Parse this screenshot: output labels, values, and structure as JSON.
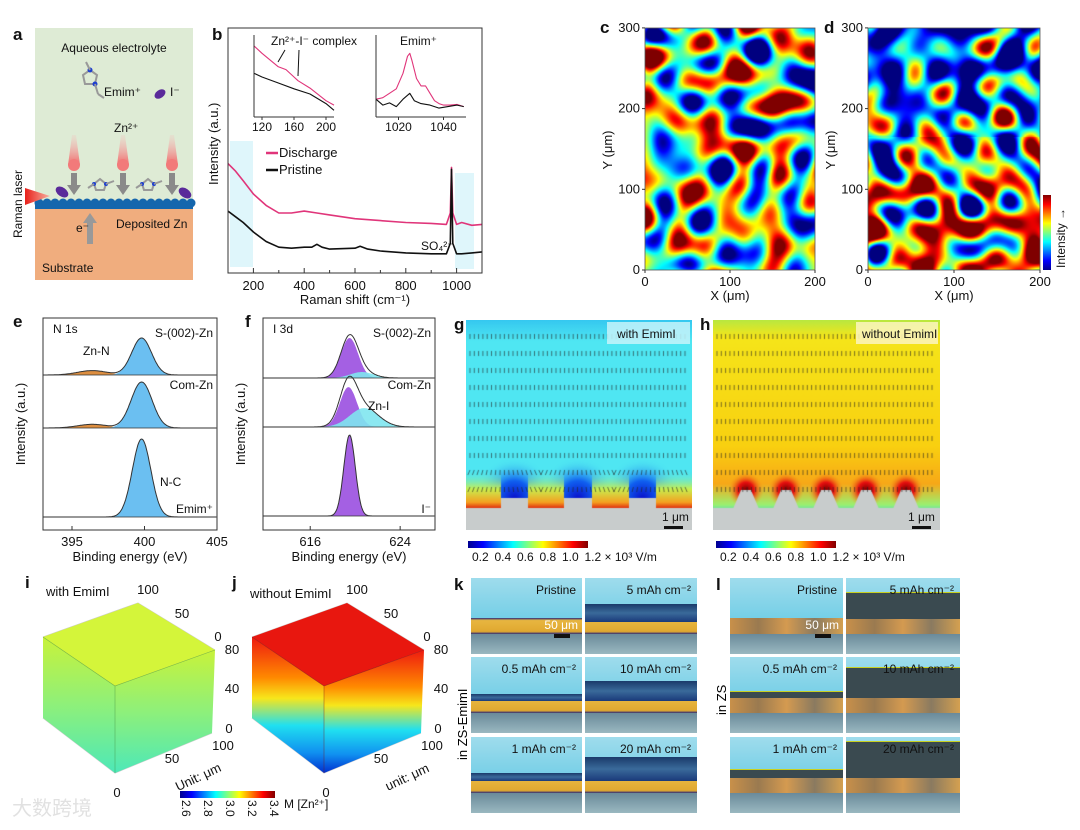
{
  "panel_labels": [
    "a",
    "b",
    "c",
    "d",
    "e",
    "f",
    "g",
    "h",
    "i",
    "j",
    "k",
    "l"
  ],
  "a": {
    "title": "Aqueous electrolyte",
    "emim": "Emim⁺",
    "iodide": "I⁻",
    "zinc_ion": "Zn²⁺",
    "laser": "Raman laser",
    "electron": "e⁻",
    "deposited": "Deposited Zn",
    "substrate": "Substrate"
  },
  "c": {
    "xlabel": "X (μm)",
    "ylabel": "Y (μm)",
    "xticks": [
      "0",
      "100",
      "200"
    ],
    "yticks": [
      "0",
      "100",
      "200",
      "300"
    ]
  },
  "d": {
    "xlabel": "X (μm)",
    "ylabel": "Y (μm)",
    "xticks": [
      "0",
      "100",
      "200"
    ],
    "yticks": [
      "0",
      "100",
      "200",
      "300"
    ],
    "colorbar_label": "Intensity →"
  },
  "g": {
    "tag": "with EmimI",
    "scale": "1 μm",
    "cbar_ticks": [
      "0.2",
      "0.4",
      "0.6",
      "0.8",
      "1.0",
      "1.2 × 10³ V/m"
    ]
  },
  "h": {
    "tag": "without EmimI",
    "scale": "1 μm",
    "cbar_ticks": [
      "0.2",
      "0.4",
      "0.6",
      "0.8",
      "1.0",
      "1.2 × 10³ V/m"
    ]
  },
  "i": {
    "title": "with EmimI",
    "unit": "Unit: μm",
    "ticks_top": [
      "100",
      "50",
      "0"
    ],
    "ticks_z": [
      "80",
      "40",
      "0"
    ],
    "ticks_front": [
      "100",
      "50",
      "0"
    ],
    "mean_conc": 3.05
  },
  "j": {
    "title": "without EmimI",
    "unit": "unit: μm",
    "ticks_top": [
      "100",
      "50",
      "0"
    ],
    "ticks_z": [
      "80",
      "40",
      "0"
    ],
    "ticks_front": [
      "100",
      "50",
      "0"
    ]
  },
  "ij_colorbar": {
    "ticks": [
      "2.6",
      "2.8",
      "3.0",
      "3.2",
      "3.4"
    ],
    "label": "M [Zn²⁺]"
  },
  "k": {
    "side_label": "in ZS-EmimI",
    "scale": "50 μm",
    "cells": [
      "Pristine",
      "5 mAh cm⁻²",
      "0.5 mAh cm⁻²",
      "10 mAh cm⁻²",
      "1 mAh cm⁻²",
      "20 mAh cm⁻²"
    ]
  },
  "l": {
    "side_label": "in ZS",
    "scale": "50 μm",
    "cells": [
      "Pristine",
      "5 mAh cm⁻²",
      "0.5 mAh cm⁻²",
      "10 mAh cm⁻²",
      "1 mAh cm⁻²",
      "20 mAh cm⁻²"
    ]
  },
  "watermark": "大数跨境",
  "colors": {
    "discharge": "#e0357a",
    "pristine": "#111111",
    "highlight": "#dff6fb",
    "nc_fill": "#5bb8f0",
    "znn_fill": "#d9822b",
    "i_fill": "#9a4fe0",
    "zni_fill": "#7fe6f0"
  },
  "chart_data": [
    {
      "id": "b",
      "type": "line",
      "title": "",
      "xlabel": "Raman shift (cm⁻¹)",
      "ylabel": "Intensity (a.u.)",
      "xlim": [
        100,
        1100
      ],
      "ylim": [
        0,
        100
      ],
      "xticks": [
        "200",
        "400",
        "600",
        "800",
        "1000"
      ],
      "legend": [
        "Discharge",
        "Pristine"
      ],
      "legend_position": "center-left",
      "annotation": "SO₄²⁻",
      "highlight_ranges": [
        [
          110,
          200
        ],
        [
          990,
          1070
        ]
      ],
      "series": [
        {
          "name": "Discharge",
          "x": [
            100,
            130,
            160,
            200,
            250,
            300,
            350,
            400,
            450,
            500,
            600,
            700,
            800,
            900,
            960,
            975,
            980,
            985,
            1000,
            1020,
            1060,
            1100
          ],
          "y": [
            56,
            52,
            47,
            40,
            34,
            30,
            30,
            31,
            30,
            29,
            27,
            26,
            25,
            24.5,
            24,
            30,
            54,
            30,
            24,
            25,
            23.5,
            24
          ]
        },
        {
          "name": "Pristine",
          "x": [
            100,
            130,
            160,
            200,
            250,
            300,
            350,
            400,
            430,
            450,
            470,
            500,
            600,
            620,
            650,
            700,
            800,
            900,
            960,
            975,
            980,
            985,
            1000,
            1020,
            1060,
            1100
          ],
          "y": [
            31,
            28,
            25,
            20,
            15,
            12,
            11.5,
            12,
            12,
            13.5,
            12,
            11,
            11.5,
            12.5,
            11,
            10,
            9,
            8.5,
            8.5,
            14,
            53,
            14,
            8.5,
            8.5,
            9,
            9.5
          ]
        }
      ]
    },
    {
      "id": "b_inset_1",
      "type": "line",
      "title": "Zn²⁺-I⁻ complex",
      "xlim": [
        110,
        210
      ],
      "ylim": [
        0,
        100
      ],
      "xticks": [
        "120",
        "160",
        "200"
      ],
      "series": [
        {
          "name": "Discharge",
          "x": [
            110,
            120,
            140,
            150,
            160,
            165,
            180,
            200,
            210
          ],
          "y": [
            92,
            82,
            64,
            60,
            50,
            45,
            35,
            18,
            12
          ]
        },
        {
          "name": "Pristine",
          "x": [
            110,
            120,
            140,
            160,
            180,
            200,
            210
          ],
          "y": [
            55,
            50,
            42,
            34,
            27,
            14,
            5
          ]
        }
      ]
    },
    {
      "id": "b_inset_2",
      "type": "line",
      "title": "Emim⁺",
      "xlim": [
        1010,
        1050
      ],
      "ylim": [
        0,
        100
      ],
      "xticks": [
        "1020",
        "1040"
      ],
      "series": [
        {
          "name": "Discharge",
          "x": [
            1010,
            1013,
            1016,
            1019,
            1022,
            1024,
            1025,
            1026,
            1028,
            1030,
            1032,
            1034,
            1036,
            1038,
            1040,
            1043,
            1046,
            1049
          ],
          "y": [
            20,
            22,
            28,
            34,
            55,
            78,
            82,
            72,
            48,
            38,
            38,
            28,
            18,
            14,
            12,
            12,
            13,
            10
          ]
        },
        {
          "name": "Pristine",
          "x": [
            1010,
            1013,
            1016,
            1019,
            1022,
            1025,
            1027,
            1030,
            1034,
            1038,
            1042,
            1046,
            1049
          ],
          "y": [
            20,
            12,
            15,
            10,
            20,
            28,
            18,
            14,
            12,
            8,
            10,
            12,
            10
          ]
        }
      ]
    },
    {
      "id": "e",
      "type": "area",
      "title": "N 1s",
      "xlabel": "Binding energy (eV)",
      "ylabel": "Intensity (a.u.)",
      "xlim": [
        393,
        405
      ],
      "xticks": [
        "395",
        "400",
        "405"
      ],
      "stacks": [
        {
          "name": "S-(002)-Zn",
          "components": [
            {
              "label": "Zn-N",
              "center": 396.4,
              "fwhm": 2.4,
              "height": 0.12,
              "color": "znn"
            },
            {
              "label": "",
              "center": 399.8,
              "fwhm": 1.6,
              "height": 1.0,
              "color": "nc"
            }
          ]
        },
        {
          "name": "Com-Zn",
          "components": [
            {
              "label": "",
              "center": 396.4,
              "fwhm": 2.4,
              "height": 0.08,
              "color": "znn"
            },
            {
              "label": "",
              "center": 399.8,
              "fwhm": 1.7,
              "height": 1.0,
              "color": "nc"
            }
          ]
        },
        {
          "name": "Emim⁺",
          "components": [
            {
              "label": "N-C",
              "center": 399.8,
              "fwhm": 1.5,
              "height": 1.0,
              "color": "nc"
            }
          ]
        }
      ]
    },
    {
      "id": "f",
      "type": "area",
      "title": "I 3d",
      "xlabel": "Binding energy (eV)",
      "ylabel": "Intensity (a.u.)",
      "xlim": [
        611.8,
        627.1
      ],
      "xticks": [
        "616",
        "624"
      ],
      "stacks": [
        {
          "name": "S-(002)-Zn",
          "components": [
            {
              "label": "",
              "center": 619.5,
              "fwhm": 1.8,
              "height": 1.0,
              "color": "i"
            },
            {
              "label": "",
              "center": 620.6,
              "fwhm": 2.4,
              "height": 0.15,
              "color": "zni"
            }
          ]
        },
        {
          "name": "Com-Zn",
          "components": [
            {
              "label": "",
              "center": 619.4,
              "fwhm": 1.8,
              "height": 0.95,
              "color": "i"
            },
            {
              "label": "Zn-I",
              "center": 620.8,
              "fwhm": 3.0,
              "height": 0.45,
              "color": "zni"
            }
          ]
        },
        {
          "name": "I⁻",
          "components": [
            {
              "label": "",
              "center": 619.5,
              "fwhm": 1.2,
              "height": 1.0,
              "color": "i"
            }
          ]
        }
      ]
    }
  ]
}
